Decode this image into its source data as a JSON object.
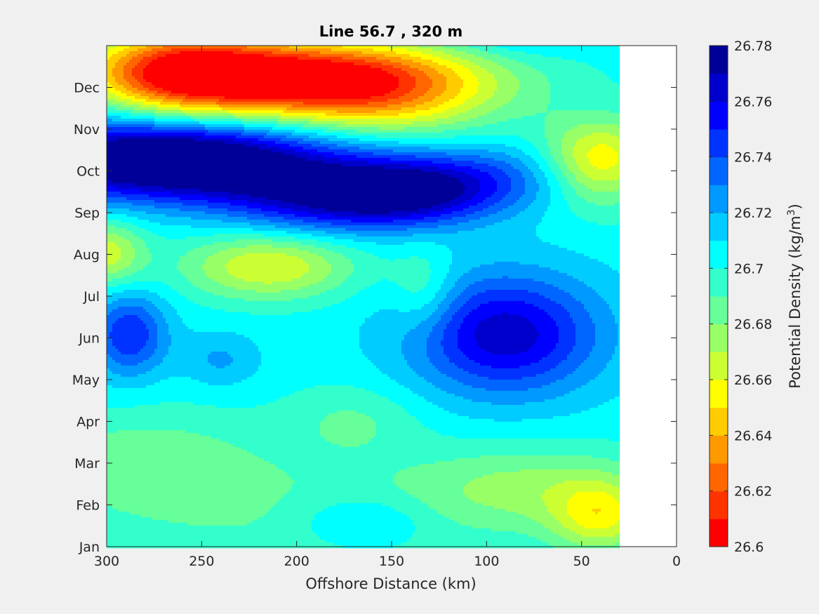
{
  "chart_data": {
    "type": "heatmap",
    "subtype": "filled-contour",
    "title": "Line 56.7 , 320 m",
    "xlabel": "Offshore Distance (km)",
    "ylabel": "",
    "x_direction": "reversed",
    "xlim": [
      0,
      300
    ],
    "x_ticks": [
      300,
      250,
      200,
      150,
      100,
      50,
      0
    ],
    "y_categories": [
      "Jan",
      "Feb",
      "Mar",
      "Apr",
      "May",
      "Jun",
      "Jul",
      "Aug",
      "Sep",
      "Oct",
      "Nov",
      "Dec"
    ],
    "data_extent_km": [
      30,
      300
    ],
    "colorbar": {
      "label": "Potential Density",
      "label_unit": "kg/m",
      "label_unit_sup": "3",
      "label_close": ")",
      "label_open": " (",
      "min": 26.6,
      "max": 26.78,
      "step": 0.01,
      "tick_labels": [
        "26.78",
        "26.76",
        "26.74",
        "26.72",
        "26.7",
        "26.68",
        "26.66",
        "26.64",
        "26.62",
        "26.6"
      ],
      "colors": [
        "#ff0000",
        "#ff3300",
        "#ff6600",
        "#ff9900",
        "#ffcc00",
        "#ffff00",
        "#ccff33",
        "#99ff66",
        "#66ff99",
        "#33ffcc",
        "#00ffff",
        "#00ccff",
        "#0099ff",
        "#0066ff",
        "#0033ff",
        "#0000ff",
        "#0000cc",
        "#000099"
      ]
    },
    "background": 26.705,
    "features": [
      {
        "x": 190,
        "y": 10.9,
        "amp": -0.09,
        "sx": 60,
        "sy": 0.65
      },
      {
        "x": 262,
        "y": 11.2,
        "amp": -0.06,
        "sx": 32,
        "sy": 0.8
      },
      {
        "x": 218,
        "y": 11.3,
        "amp": -0.03,
        "sx": 70,
        "sy": 0.5
      },
      {
        "x": 150,
        "y": 10.3,
        "amp": -0.02,
        "sx": 40,
        "sy": 0.7
      },
      {
        "x": 268,
        "y": 9.35,
        "amp": 0.075,
        "sx": 55,
        "sy": 0.6
      },
      {
        "x": 200,
        "y": 8.7,
        "amp": 0.05,
        "sx": 120,
        "sy": 0.55
      },
      {
        "x": 180,
        "y": 8.0,
        "amp": 0.04,
        "sx": 40,
        "sy": 0.5
      },
      {
        "x": 135,
        "y": 8.3,
        "amp": 0.035,
        "sx": 30,
        "sy": 0.5
      },
      {
        "x": 90,
        "y": 5.0,
        "amp": 0.062,
        "sx": 35,
        "sy": 1.0
      },
      {
        "x": 288,
        "y": 5.0,
        "amp": 0.045,
        "sx": 14,
        "sy": 0.7
      },
      {
        "x": 215,
        "y": 6.6,
        "amp": -0.045,
        "sx": 32,
        "sy": 0.55
      },
      {
        "x": 40,
        "y": 9.0,
        "amp": -0.065,
        "sx": 22,
        "sy": 0.7
      },
      {
        "x": 300,
        "y": 6.9,
        "amp": -0.04,
        "sx": 14,
        "sy": 0.55
      },
      {
        "x": 190,
        "y": 0.7,
        "amp": -0.015,
        "sx": 80,
        "sy": 1.1
      },
      {
        "x": 75,
        "y": 1.4,
        "amp": -0.025,
        "sx": 45,
        "sy": 0.7
      },
      {
        "x": 40,
        "y": 0.7,
        "amp": -0.04,
        "sx": 18,
        "sy": 0.6
      },
      {
        "x": 280,
        "y": 2.0,
        "amp": -0.02,
        "sx": 45,
        "sy": 0.9
      },
      {
        "x": 170,
        "y": 3.0,
        "amp": -0.015,
        "sx": 25,
        "sy": 0.6
      },
      {
        "x": 165,
        "y": 0.6,
        "amp": 0.02,
        "sx": 25,
        "sy": 0.45
      },
      {
        "x": 240,
        "y": 4.4,
        "amp": 0.017,
        "sx": 14,
        "sy": 0.45
      },
      {
        "x": 133,
        "y": 6.0,
        "amp": -0.02,
        "sx": 12,
        "sy": 0.7
      },
      {
        "x": 85,
        "y": 12.3,
        "amp": 0.02,
        "sx": 25,
        "sy": 0.5
      }
    ]
  }
}
